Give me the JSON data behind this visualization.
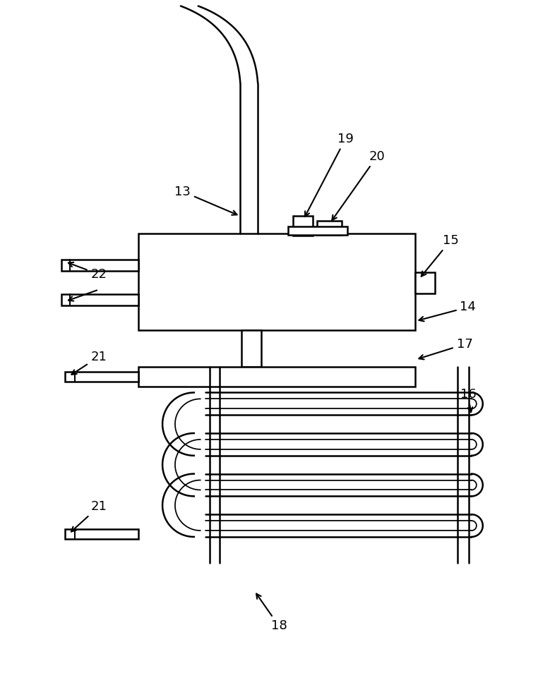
{
  "bg_color": "#ffffff",
  "line_color": "#000000",
  "lw": 1.8,
  "fig_width": 7.62,
  "fig_height": 9.71
}
